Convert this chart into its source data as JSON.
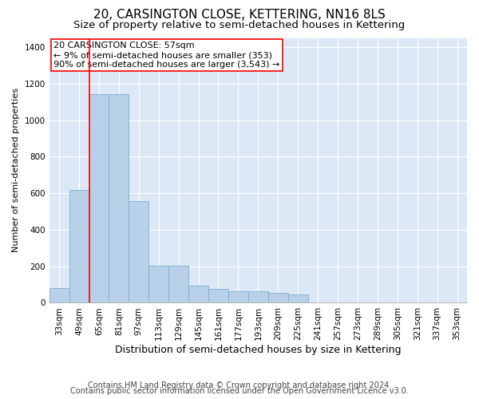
{
  "title": "20, CARSINGTON CLOSE, KETTERING, NN16 8LS",
  "subtitle": "Size of property relative to semi-detached houses in Kettering",
  "xlabel": "Distribution of semi-detached houses by size in Kettering",
  "ylabel": "Number of semi-detached properties",
  "footnote1": "Contains HM Land Registry data © Crown copyright and database right 2024.",
  "footnote2": "Contains public sector information licensed under the Open Government Licence v3.0.",
  "categories": [
    "33sqm",
    "49sqm",
    "65sqm",
    "81sqm",
    "97sqm",
    "113sqm",
    "129sqm",
    "145sqm",
    "161sqm",
    "177sqm",
    "193sqm",
    "209sqm",
    "225sqm",
    "241sqm",
    "257sqm",
    "273sqm",
    "289sqm",
    "305sqm",
    "321sqm",
    "337sqm",
    "353sqm"
  ],
  "values": [
    80,
    620,
    1140,
    1140,
    555,
    205,
    205,
    95,
    75,
    65,
    65,
    55,
    45,
    0,
    0,
    0,
    0,
    0,
    0,
    0,
    0
  ],
  "bar_color": "#b8d0e8",
  "bar_edge_color": "#7aafd4",
  "property_label": "20 CARSINGTON CLOSE: 57sqm",
  "annotation_line1": "← 9% of semi-detached houses are smaller (353)",
  "annotation_line2": "90% of semi-detached houses are larger (3,543) →",
  "annotation_box_color": "white",
  "annotation_box_edge": "red",
  "property_line_color": "red",
  "ylim": [
    0,
    1450
  ],
  "yticks": [
    0,
    200,
    400,
    600,
    800,
    1000,
    1200,
    1400
  ],
  "fig_bg_color": "#ffffff",
  "plot_bg_color": "#dce8f5",
  "grid_color": "#ffffff",
  "title_fontsize": 11,
  "subtitle_fontsize": 9.5,
  "xlabel_fontsize": 9,
  "ylabel_fontsize": 8,
  "tick_fontsize": 7.5,
  "annotation_fontsize": 8,
  "footnote_fontsize": 7
}
